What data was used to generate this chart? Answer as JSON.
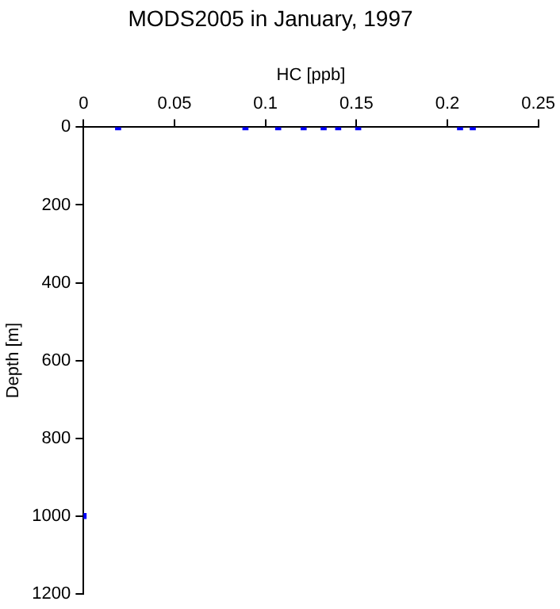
{
  "chart_data": {
    "type": "scatter",
    "title": "MODS2005 in January, 1997",
    "xlabel": "HC [ppb]",
    "ylabel": "Depth [m]",
    "x": [
      0.019,
      0.089,
      0.107,
      0.121,
      0.132,
      0.14,
      0.151,
      0.207,
      0.214,
      0
    ],
    "series": [
      {
        "color": "#0000ff",
        "values": [
          0,
          0,
          0,
          0,
          0,
          0,
          0,
          0,
          0,
          1000
        ]
      }
    ],
    "xlim": [
      0,
      0.25
    ],
    "xticks": [
      0,
      0.05,
      0.1,
      0.15,
      0.2,
      0.25
    ],
    "ylim": [
      1200,
      0
    ],
    "yticks": [
      0,
      200,
      400,
      600,
      800,
      1000,
      1200
    ],
    "grid": false,
    "legend": false,
    "marker": "square"
  }
}
